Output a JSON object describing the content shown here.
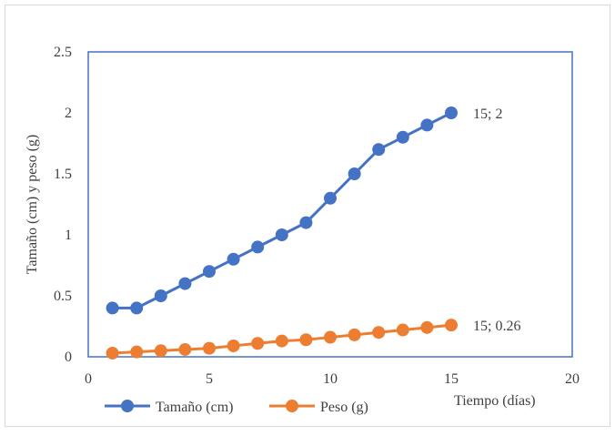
{
  "chart_data": {
    "type": "line",
    "x": [
      1,
      2,
      3,
      4,
      5,
      6,
      7,
      8,
      9,
      10,
      11,
      12,
      13,
      14,
      15
    ],
    "series": [
      {
        "name": "Tamaño (cm)",
        "color": "#4472C4",
        "values": [
          0.4,
          0.4,
          0.5,
          0.6,
          0.7,
          0.8,
          0.9,
          1.0,
          1.1,
          1.3,
          1.5,
          1.7,
          1.8,
          1.9,
          2.0
        ],
        "end_label": "15; 2"
      },
      {
        "name": "Peso (g)",
        "color": "#ED7D31",
        "values": [
          0.03,
          0.04,
          0.05,
          0.06,
          0.07,
          0.09,
          0.11,
          0.13,
          0.14,
          0.16,
          0.18,
          0.2,
          0.22,
          0.24,
          0.26
        ],
        "end_label": "15; 0.26"
      }
    ],
    "xlabel": "Tiempo (días)",
    "ylabel": "Tamaño (cm) y peso (g)",
    "xlim": [
      0,
      20
    ],
    "ylim": [
      0,
      2.5
    ],
    "xticks": [
      "0",
      "5",
      "10",
      "15",
      "20"
    ],
    "yticks": [
      "0",
      "0.5",
      "1",
      "1.5",
      "2",
      "2.5"
    ],
    "grid": false,
    "legend_position": "bottom-left",
    "plot_border_color": "#4472C4"
  }
}
